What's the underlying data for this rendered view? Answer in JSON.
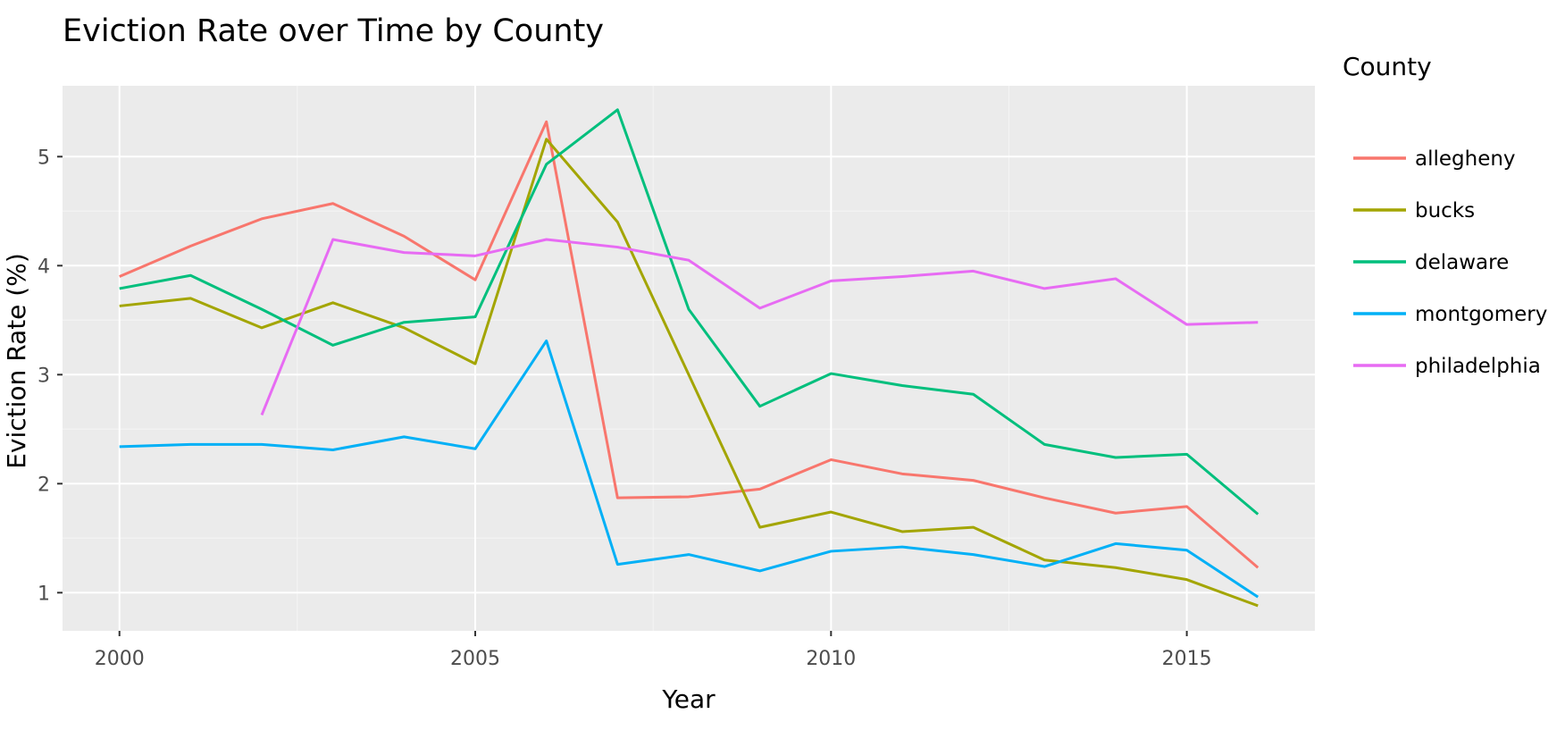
{
  "chart_data": {
    "type": "line",
    "title": "Eviction Rate over Time by County",
    "xlabel": "Year",
    "ylabel": "Eviction Rate (%)",
    "xlim": [
      1999.2,
      2016.8
    ],
    "ylim": [
      0.65,
      5.65
    ],
    "xticks": [
      2000,
      2005,
      2010,
      2015
    ],
    "yticks": [
      1,
      2,
      3,
      4,
      5
    ],
    "xtick_labels": [
      "2000",
      "2005",
      "2010",
      "2015"
    ],
    "ytick_labels": [
      "1",
      "2",
      "3",
      "4",
      "5"
    ],
    "grid": true,
    "legend_title": "County",
    "legend_position": "right",
    "series": [
      {
        "name": "allegheny",
        "color": "#F8766D",
        "x": [
          2000,
          2001,
          2002,
          2003,
          2004,
          2005,
          2006,
          2007,
          2008,
          2009,
          2010,
          2011,
          2012,
          2013,
          2014,
          2015,
          2016
        ],
        "values": [
          3.9,
          4.18,
          4.43,
          4.57,
          4.27,
          3.87,
          5.32,
          1.87,
          1.88,
          1.95,
          2.22,
          2.09,
          2.03,
          1.87,
          1.73,
          1.79,
          1.23
        ]
      },
      {
        "name": "bucks",
        "color": "#A3A500",
        "x": [
          2000,
          2001,
          2002,
          2003,
          2004,
          2005,
          2006,
          2007,
          2008,
          2009,
          2010,
          2011,
          2012,
          2013,
          2014,
          2015,
          2016
        ],
        "values": [
          3.63,
          3.7,
          3.43,
          3.66,
          3.43,
          3.1,
          5.16,
          4.4,
          3.0,
          1.6,
          1.74,
          1.56,
          1.6,
          1.3,
          1.23,
          1.12,
          0.88
        ]
      },
      {
        "name": "delaware",
        "color": "#00BF7D",
        "x": [
          2000,
          2001,
          2002,
          2003,
          2004,
          2005,
          2006,
          2007,
          2008,
          2009,
          2010,
          2011,
          2012,
          2013,
          2014,
          2015,
          2016
        ],
        "values": [
          3.79,
          3.91,
          3.6,
          3.27,
          3.48,
          3.53,
          4.93,
          5.43,
          3.6,
          2.71,
          3.01,
          2.9,
          2.82,
          2.36,
          2.24,
          2.27,
          1.72
        ]
      },
      {
        "name": "montgomery",
        "color": "#00B0F6",
        "x": [
          2000,
          2001,
          2002,
          2003,
          2004,
          2005,
          2006,
          2007,
          2008,
          2009,
          2010,
          2011,
          2012,
          2013,
          2014,
          2015,
          2016
        ],
        "values": [
          2.34,
          2.36,
          2.36,
          2.31,
          2.43,
          2.32,
          3.31,
          1.26,
          1.35,
          1.2,
          1.38,
          1.42,
          1.35,
          1.24,
          1.45,
          1.39,
          0.96
        ]
      },
      {
        "name": "philadelphia",
        "color": "#E76BF3",
        "x": [
          2002,
          2003,
          2004,
          2005,
          2006,
          2007,
          2008,
          2009,
          2010,
          2011,
          2012,
          2013,
          2014,
          2015,
          2016
        ],
        "values": [
          2.63,
          4.24,
          4.12,
          4.09,
          4.24,
          4.17,
          4.05,
          3.61,
          3.86,
          3.9,
          3.95,
          3.79,
          3.88,
          3.46,
          3.48
        ]
      }
    ]
  }
}
